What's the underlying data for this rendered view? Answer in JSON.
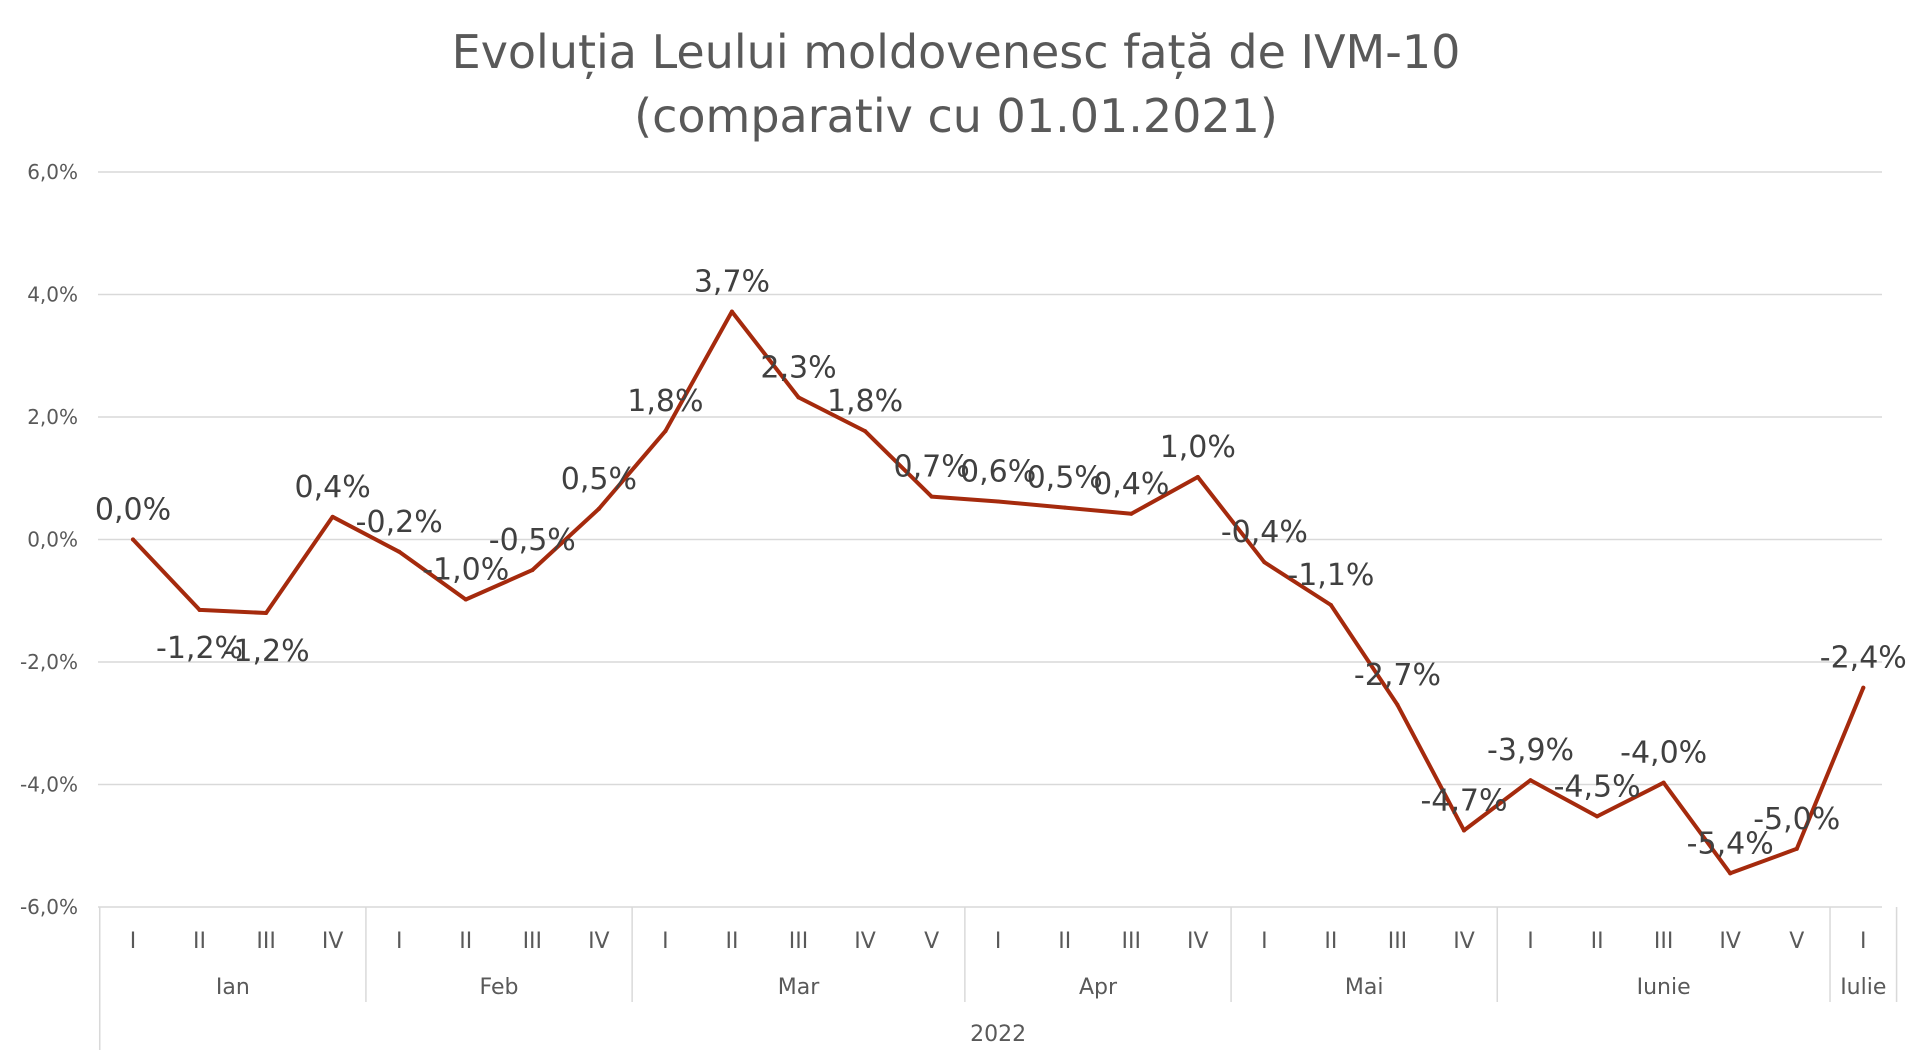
{
  "colors": {
    "line": "#A52A0D",
    "grid": "#D9D9D9",
    "axis_text": "#595959",
    "label_text": "#404040"
  },
  "chart_data": {
    "type": "line",
    "title_lines": [
      "Evoluția Leului moldovenesc față de IVM-10",
      "(comparativ cu 01.01.2021)"
    ],
    "y_ticks": [
      "6,0%",
      "4,0%",
      "2,0%",
      "0,0%",
      "-2,0%",
      "-4,0%",
      "-6,0%"
    ],
    "ylim": [
      -6,
      6
    ],
    "year": "2022",
    "months": [
      {
        "name": "Ian",
        "weeks": [
          "I",
          "II",
          "III",
          "IV"
        ]
      },
      {
        "name": "Feb",
        "weeks": [
          "I",
          "II",
          "III",
          "IV"
        ]
      },
      {
        "name": "Mar",
        "weeks": [
          "I",
          "II",
          "III",
          "IV",
          "V"
        ]
      },
      {
        "name": "Apr",
        "weeks": [
          "I",
          "II",
          "III",
          "IV"
        ]
      },
      {
        "name": "Mai",
        "weeks": [
          "I",
          "II",
          "III",
          "IV"
        ]
      },
      {
        "name": "Iunie",
        "weeks": [
          "I",
          "II",
          "III",
          "IV",
          "V"
        ]
      },
      {
        "name": "Iulie",
        "weeks": [
          "I"
        ]
      }
    ],
    "values": [
      0.0,
      -1.15,
      -1.2,
      0.37,
      -0.2,
      -0.98,
      -0.5,
      0.5,
      1.77,
      3.72,
      2.32,
      1.77,
      0.7,
      0.62,
      0.52,
      0.42,
      1.02,
      -0.37,
      -1.07,
      -2.7,
      -4.75,
      -3.93,
      -4.52,
      -3.97,
      -5.45,
      -5.05,
      -2.42
    ],
    "data_labels": [
      "0,0%",
      "-1,2%",
      "-1,2%",
      "0,4%",
      "-0,2%",
      "-1,0%",
      "-0,5%",
      "0,5%",
      "1,8%",
      "3,7%",
      "2,3%",
      "1,8%",
      "0,7%",
      "0,6%",
      "0,5%",
      "0,4%",
      "1,0%",
      "-0,4%",
      "-1,1%",
      "-2,7%",
      "-4,7%",
      "-3,9%",
      "-4,5%",
      "-4,0%",
      "-5,4%",
      "-5,0%",
      "-2,4%"
    ]
  }
}
